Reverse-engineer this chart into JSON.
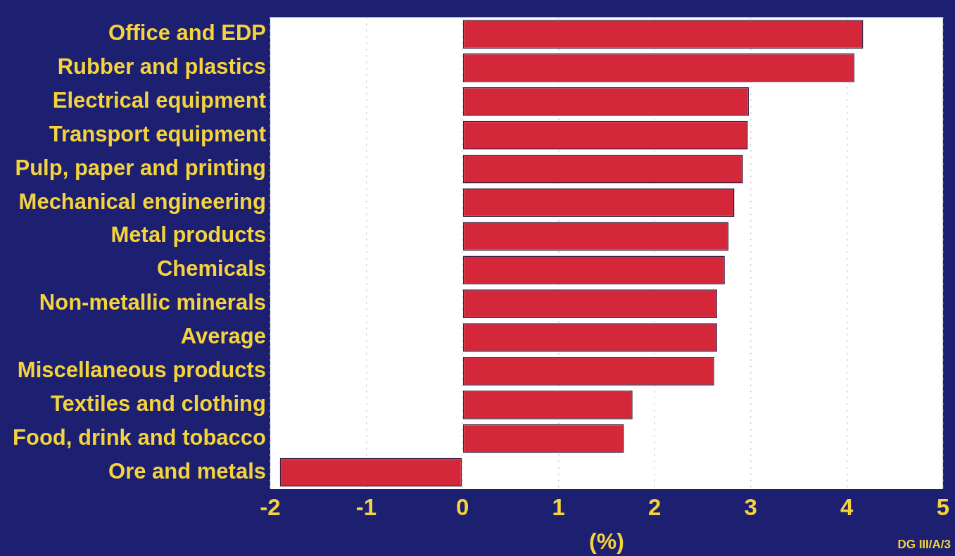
{
  "chart_data": {
    "type": "bar",
    "orientation": "horizontal",
    "categories": [
      "Office and EDP",
      "Rubber and plastics",
      "Electrical equipment",
      "Transport equipment",
      "Pulp, paper and printing",
      "Mechanical engineering",
      "Metal products",
      "Chemicals",
      "Non-metallic minerals",
      "Average",
      "Miscellaneous products",
      "Textiles and clothing",
      "Food, drink and tobacco",
      "Ore and metals"
    ],
    "values": [
      4.17,
      4.08,
      2.98,
      2.97,
      2.92,
      2.83,
      2.77,
      2.73,
      2.65,
      2.65,
      2.62,
      1.77,
      1.68,
      -1.9
    ],
    "color": "#d4283a",
    "xlim": [
      -2,
      5
    ],
    "xticks": [
      -2,
      -1,
      0,
      1,
      2,
      3,
      4,
      5
    ],
    "xlabel": "(%)",
    "grid": "x",
    "annotations": [
      "DG III/A/3"
    ]
  }
}
